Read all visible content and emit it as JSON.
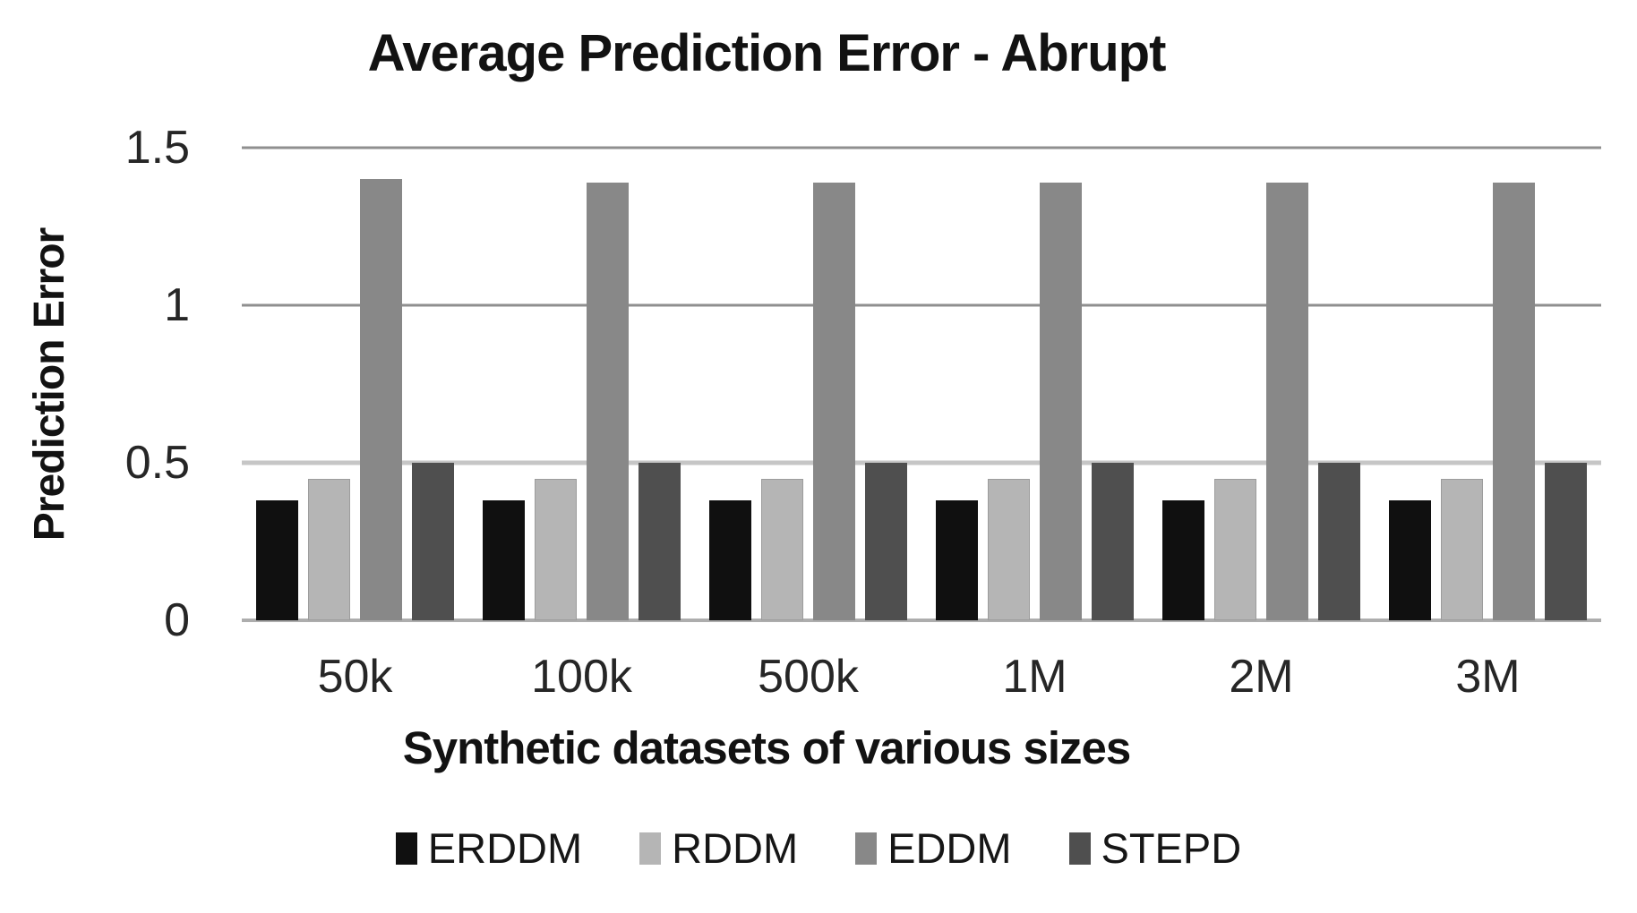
{
  "title": "Average Prediction Error - Abrupt",
  "y_axis": {
    "title": "Prediction Error",
    "ticks": [
      {
        "label": "1.5",
        "value": 1.5
      },
      {
        "label": "1",
        "value": 1.0
      },
      {
        "label": "0.5",
        "value": 0.5
      },
      {
        "label": "0",
        "value": 0.0
      }
    ]
  },
  "x_axis": {
    "title": "Synthetic datasets of various sizes",
    "categories": [
      "50k",
      "100k",
      "500k",
      "1M",
      "2M",
      "3M"
    ]
  },
  "legend": {
    "position": "bottom",
    "items": [
      {
        "label": "ERDDM",
        "color": "#101010"
      },
      {
        "label": "RDDM",
        "color": "#b5b5b5"
      },
      {
        "label": "EDDM",
        "color": "#888888"
      },
      {
        "label": "STEPD",
        "color": "#4f4f4f"
      }
    ]
  },
  "style": {
    "gridline_color": "#8f8f8f",
    "half_gridline_color": "#c6c6c6",
    "baseline_color": "#adadad",
    "background": "#ffffff",
    "rddm_bar_border": "#9c9c9c"
  },
  "chart_data": {
    "type": "bar",
    "title": "Average Prediction Error - Abrupt",
    "categories": [
      "50k",
      "100k",
      "500k",
      "1M",
      "2M",
      "3M"
    ],
    "series": [
      {
        "name": "ERDDM",
        "color": "#101010",
        "values": [
          0.38,
          0.38,
          0.38,
          0.38,
          0.38,
          0.38
        ]
      },
      {
        "name": "RDDM",
        "color": "#b5b5b5",
        "values": [
          0.45,
          0.45,
          0.45,
          0.45,
          0.45,
          0.45
        ]
      },
      {
        "name": "EDDM",
        "color": "#888888",
        "values": [
          1.4,
          1.39,
          1.39,
          1.39,
          1.39,
          1.39
        ]
      },
      {
        "name": "STEPD",
        "color": "#4f4f4f",
        "values": [
          0.5,
          0.5,
          0.5,
          0.5,
          0.5,
          0.5
        ]
      }
    ],
    "xlabel": "Synthetic datasets of various sizes",
    "ylabel": "Prediction Error",
    "ylim": [
      0,
      1.5
    ],
    "ytick_values": [
      0,
      0.5,
      1,
      1.5
    ],
    "grid": "horizontal",
    "legend_position": "bottom"
  }
}
